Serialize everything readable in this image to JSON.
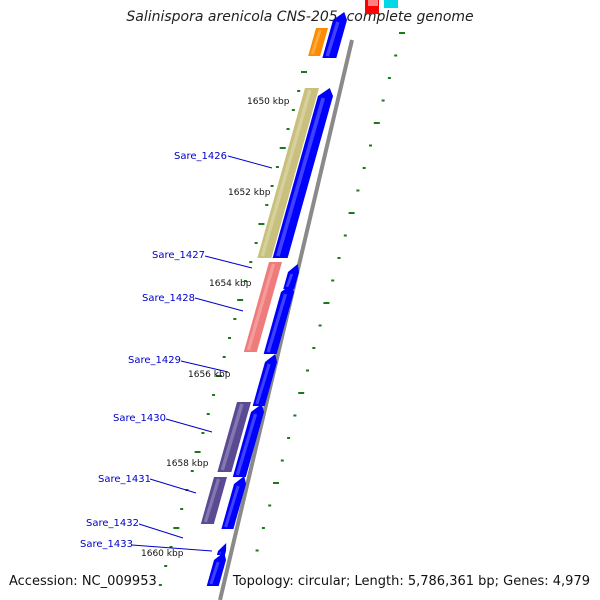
{
  "title": "Salinispora arenicola CNS-205, complete genome",
  "accession_text": "Accession: NC_009953",
  "topology_text": "Topology: circular; Length: 5,786,361 bp; Genes: 4,979",
  "colors": {
    "backbone": "#8a8a8a",
    "forward_gene": "#0000ff",
    "tick_marks": "#1a7a1a",
    "label_text": "#0000cc",
    "leader_line": "#0000cc",
    "orange_feature": "#ff8c00",
    "red_feature": "#ff0000",
    "cyan_feature": "#00d8e8",
    "olive_feature": "#c8c07c",
    "salmon_feature": "#f07b7b",
    "purple_feature": "#5a4a94"
  },
  "ruler": [
    {
      "label": "1650 kbp"
    },
    {
      "label": "1652 kbp"
    },
    {
      "label": "1654 kbp"
    },
    {
      "label": "1656 kbp"
    },
    {
      "label": "1658 kbp"
    },
    {
      "label": "1660 kbp"
    }
  ],
  "genes": [
    {
      "label": "Sare_1426"
    },
    {
      "label": "Sare_1427"
    },
    {
      "label": "Sare_1428"
    },
    {
      "label": "Sare_1429"
    },
    {
      "label": "Sare_1430"
    },
    {
      "label": "Sare_1431"
    },
    {
      "label": "Sare_1432"
    },
    {
      "label": "Sare_1433"
    }
  ]
}
